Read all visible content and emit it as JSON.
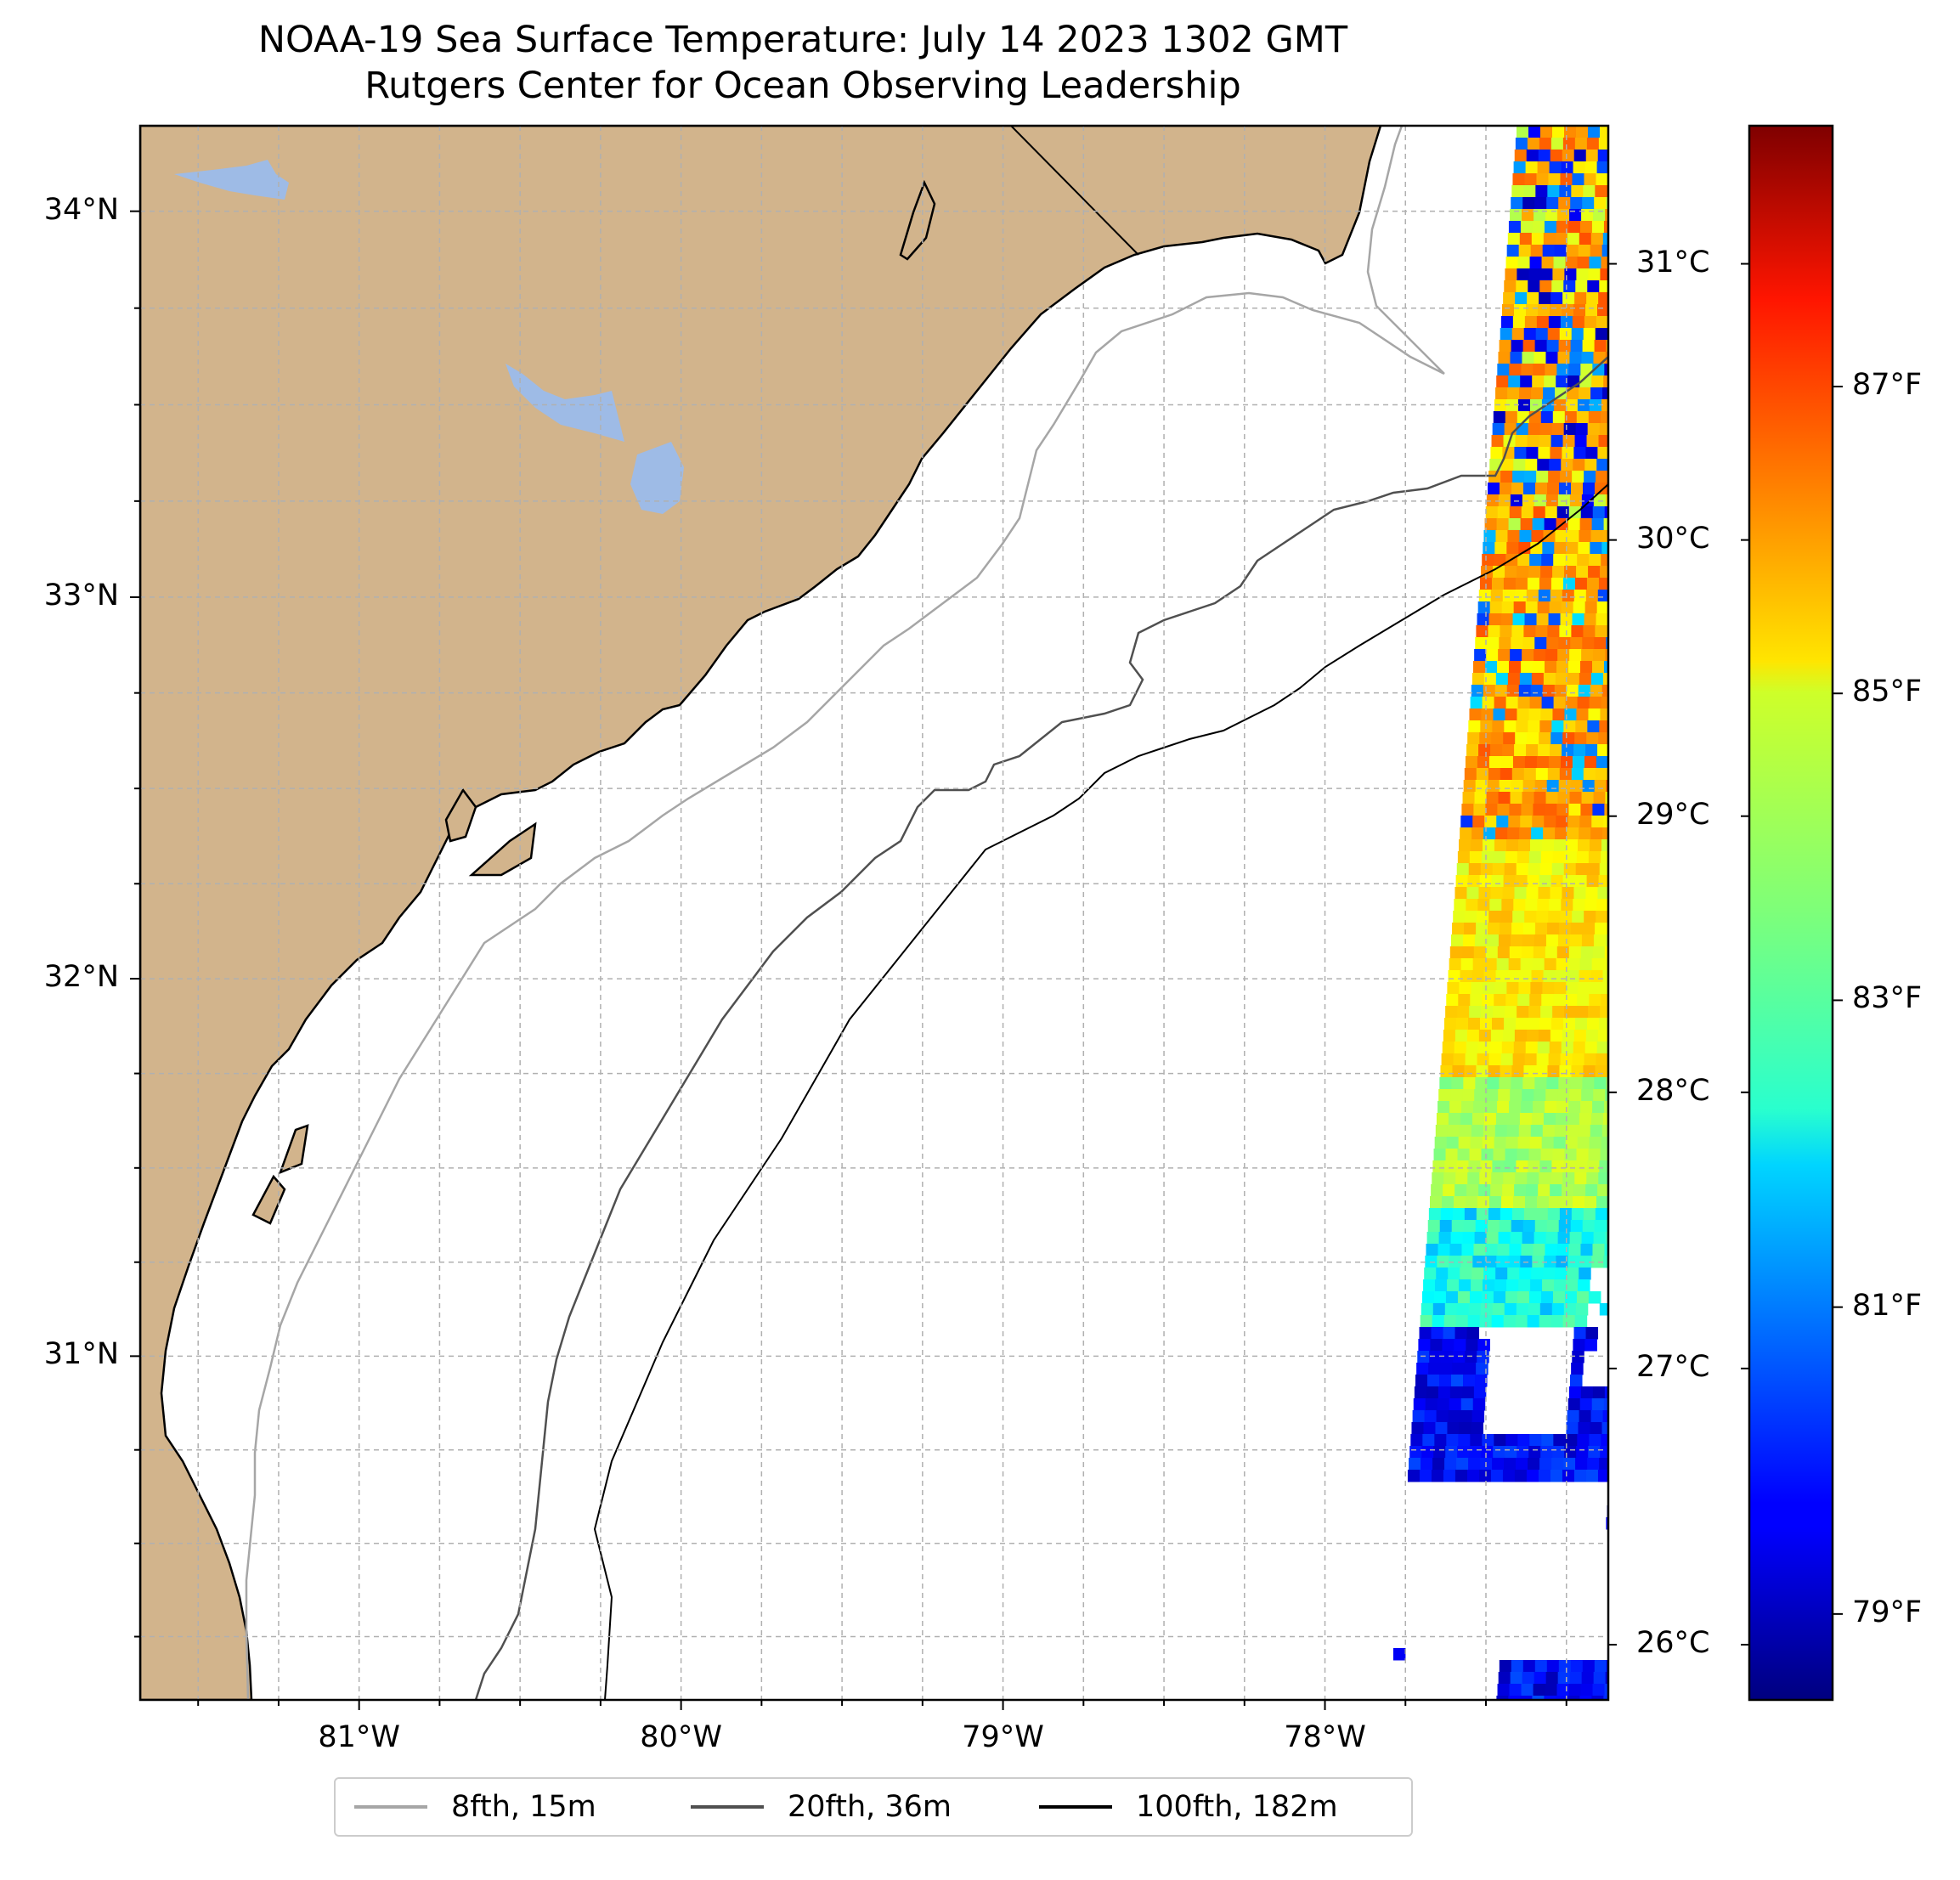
{
  "title": "NOAA-19 Sea Surface Temperature: July 14 2023 1302 GMT",
  "subtitle": "Rutgers Center for Ocean Observing Leadership",
  "map": {
    "lon_range": [
      -81.68,
      -77.12
    ],
    "lat_range": [
      30.08,
      34.22
    ],
    "lat_labels": [
      {
        "label": "34°N",
        "lat": 34
      },
      {
        "label": "33°N",
        "lat": 33
      },
      {
        "label": "32°N",
        "lat": 32
      },
      {
        "label": "31°N",
        "lat": 31
      }
    ],
    "lon_labels": [
      {
        "label": "81°W",
        "lon": -81
      },
      {
        "label": "80°W",
        "lon": -80
      },
      {
        "label": "79°W",
        "lon": -79
      },
      {
        "label": "78°W",
        "lon": -78
      }
    ],
    "colors": {
      "land": "#d2b48c",
      "lakes": "#9ebbe6",
      "grid": "#b0b0b0"
    }
  },
  "colorbar": {
    "colormap": "jet",
    "range_c": [
      25.8,
      31.5
    ],
    "celsius_ticks": [
      {
        "label": "31°C",
        "value": 31
      },
      {
        "label": "30°C",
        "value": 30
      },
      {
        "label": "29°C",
        "value": 29
      },
      {
        "label": "28°C",
        "value": 28
      },
      {
        "label": "27°C",
        "value": 27
      },
      {
        "label": "26°C",
        "value": 26
      }
    ],
    "fahrenheit_ticks": [
      {
        "label": "87°F",
        "value": 87
      },
      {
        "label": "85°F",
        "value": 85
      },
      {
        "label": "83°F",
        "value": 83
      },
      {
        "label": "81°F",
        "value": 81
      },
      {
        "label": "79°F",
        "value": 79
      }
    ]
  },
  "legend": {
    "items": [
      {
        "label": "8fth, 15m",
        "color": "#a6a6a6"
      },
      {
        "label": "20fth, 36m",
        "color": "#505050"
      },
      {
        "label": "100fth, 182m",
        "color": "#000000"
      }
    ]
  }
}
